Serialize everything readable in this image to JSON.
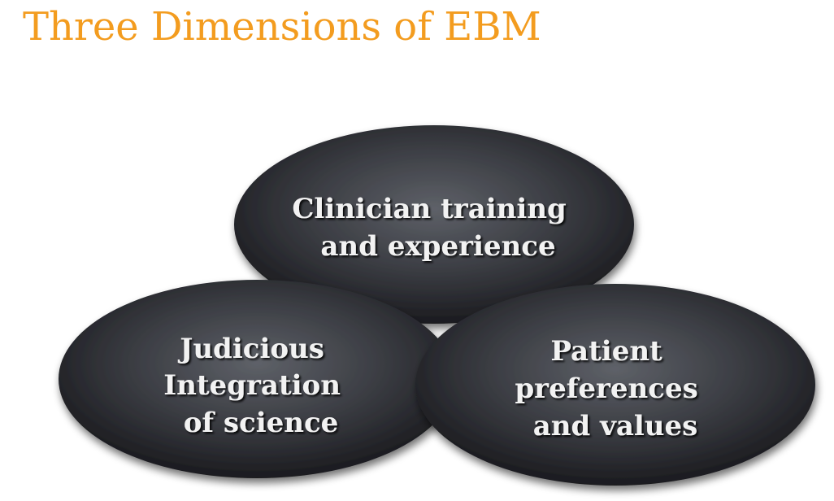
{
  "title": "Three Dimensions of EBM",
  "colors": {
    "title": "#f39c1f",
    "oval_light": "#5e6168",
    "oval_dark": "#1b1b1f",
    "label_text": "#f2f2f2"
  },
  "diagram": {
    "top_oval": {
      "lines": [
        "Clinician training",
        "and experience"
      ]
    },
    "left_oval": {
      "lines": [
        "Judicious",
        "Integration",
        "of science"
      ]
    },
    "right_oval": {
      "lines": [
        "Patient",
        "preferences",
        "and values"
      ]
    }
  }
}
